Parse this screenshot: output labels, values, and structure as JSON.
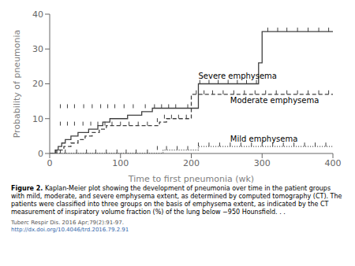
{
  "chart_data": {
    "type": "step",
    "xlabel": "Time to first pneumonia (wk)",
    "ylabel": "Probability of pneumonia",
    "xlim": [
      0,
      400
    ],
    "ylim": [
      0,
      40
    ],
    "xticks": [
      0,
      100,
      200,
      300,
      400
    ],
    "yticks": [
      0,
      10,
      20,
      30,
      40
    ],
    "grid": false,
    "background_color": "#ffffff",
    "series": [
      {
        "color": "#404040",
        "line_style": "solid",
        "x": [
          0,
          8,
          12,
          17,
          22,
          30,
          40,
          55,
          68,
          75,
          85,
          95,
          110,
          130,
          145,
          155,
          165,
          175,
          195,
          210,
          215,
          220,
          230,
          240,
          255,
          270,
          290,
          295,
          300,
          310,
          400
        ],
        "values": [
          0,
          1,
          2,
          3,
          4,
          5,
          6,
          7,
          8,
          9,
          10,
          10,
          11,
          12,
          13,
          13,
          13,
          13,
          13,
          20,
          20,
          20,
          20,
          20,
          20,
          20,
          20,
          26,
          35,
          35,
          35
        ],
        "censor_x": [
          15,
          25,
          35,
          48,
          60,
          72,
          82,
          92,
          105,
          118,
          135,
          148,
          158,
          168,
          178,
          195,
          212,
          225,
          238,
          252,
          265,
          278,
          292,
          308,
          322,
          335,
          350,
          365,
          380,
          394
        ],
        "censor_y": [
          13,
          13,
          13,
          13,
          13,
          13,
          13,
          13,
          13,
          13,
          13,
          13,
          13,
          13,
          13,
          13,
          20,
          20,
          20,
          20,
          20,
          20,
          20,
          35,
          35,
          35,
          35,
          35,
          35,
          35
        ]
      },
      {
        "color": "#404040",
        "line_style": "dashed",
        "x": [
          0,
          10,
          20,
          30,
          40,
          50,
          60,
          70,
          80,
          90,
          100,
          110,
          120,
          130,
          140,
          155,
          165,
          178,
          190,
          200,
          205,
          215,
          220,
          400
        ],
        "values": [
          0,
          1,
          2,
          3,
          4,
          5,
          6,
          7,
          8,
          8,
          8,
          8,
          8,
          8,
          8,
          9,
          10,
          10,
          10,
          17,
          17,
          17,
          17,
          17
        ],
        "censor_x": [
          15,
          25,
          35,
          47,
          58,
          68,
          78,
          88,
          100,
          112,
          125,
          138,
          152,
          162,
          172,
          182,
          193,
          207,
          218,
          230,
          245,
          260,
          275,
          290,
          305,
          320,
          335,
          350,
          365,
          380,
          394
        ],
        "censor_y": [
          8,
          8,
          8,
          8,
          8,
          8,
          8,
          8,
          8,
          8,
          8,
          8,
          9,
          10,
          10,
          10,
          10,
          17,
          17,
          17,
          17,
          17,
          17,
          17,
          17,
          17,
          17,
          17,
          17,
          17,
          17
        ]
      },
      {
        "color": "#404040",
        "line_style": "dotted",
        "x": [
          0,
          5,
          10,
          20,
          30,
          50,
          60,
          80,
          100,
          120,
          150,
          155,
          160,
          165,
          170,
          190,
          200,
          205,
          210,
          400
        ],
        "values": [
          0,
          0,
          0,
          0,
          0,
          0,
          0,
          0,
          0,
          0,
          0,
          0,
          1,
          1,
          1,
          1,
          1,
          1,
          2,
          2
        ],
        "censor_x": [
          8,
          15,
          22,
          38,
          52,
          65,
          80,
          95,
          108,
          122,
          138,
          152,
          165,
          180,
          195,
          210,
          225,
          240,
          255,
          270,
          285,
          300,
          315,
          330,
          345,
          360,
          375,
          390
        ],
        "censor_y": [
          0,
          0,
          0,
          0,
          0,
          0,
          0,
          0,
          0,
          0,
          0,
          1,
          1,
          1,
          1,
          2,
          2,
          2,
          2,
          2,
          2,
          2,
          2,
          2,
          2,
          2,
          2,
          2
        ]
      }
    ],
    "annotations": [
      {
        "text": "Severe emphysema",
        "x": 210,
        "y": 21.5
      },
      {
        "text": "Moderate emphysema",
        "x": 255,
        "y": 14.5
      },
      {
        "text": "Mild emphysema",
        "x": 255,
        "y": 3.5
      }
    ],
    "caption_label": "Figure 2.",
    "caption": " Kaplan-Meier plot showing the development of pneumonia over time in the patient groups with mild, moderate, and severe emphysema extent, as determined by computed tomography (CT). The patients were classified into three groups on the basis of emphysema extent, as indicated by the CT measurement of inspiratory volume fraction (%) of the lung below −950 Hounsfield. . .",
    "citation": [
      {
        "text": "Tuberc Respir Dis. 2016 Apr;79(2):91-97.",
        "color": "#555555"
      },
      {
        "text": "http://dx.doi.org/10.4046/trd.2016.79.2.91",
        "color": "#3366aa"
      }
    ]
  }
}
